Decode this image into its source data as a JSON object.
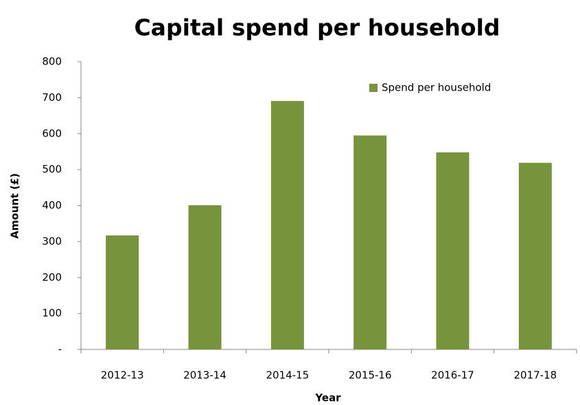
{
  "chart_data": {
    "type": "bar",
    "title": "Capital spend per household",
    "x_label": "Year",
    "y_label": "Amount (£)",
    "categories": [
      "2012-13",
      "2013-14",
      "2014-15",
      "2015-16",
      "2016-17",
      "2017-18"
    ],
    "series": [
      {
        "name": "Spend per household",
        "color": "#77933c",
        "values": [
          317,
          401,
          691,
          595,
          548,
          519
        ]
      }
    ],
    "ylim": [
      0,
      800
    ],
    "yticks": [
      {
        "value": 0,
        "label": "-"
      },
      100,
      200,
      300,
      400,
      500,
      600,
      700,
      800
    ],
    "grid": false,
    "legend": "top-right"
  }
}
